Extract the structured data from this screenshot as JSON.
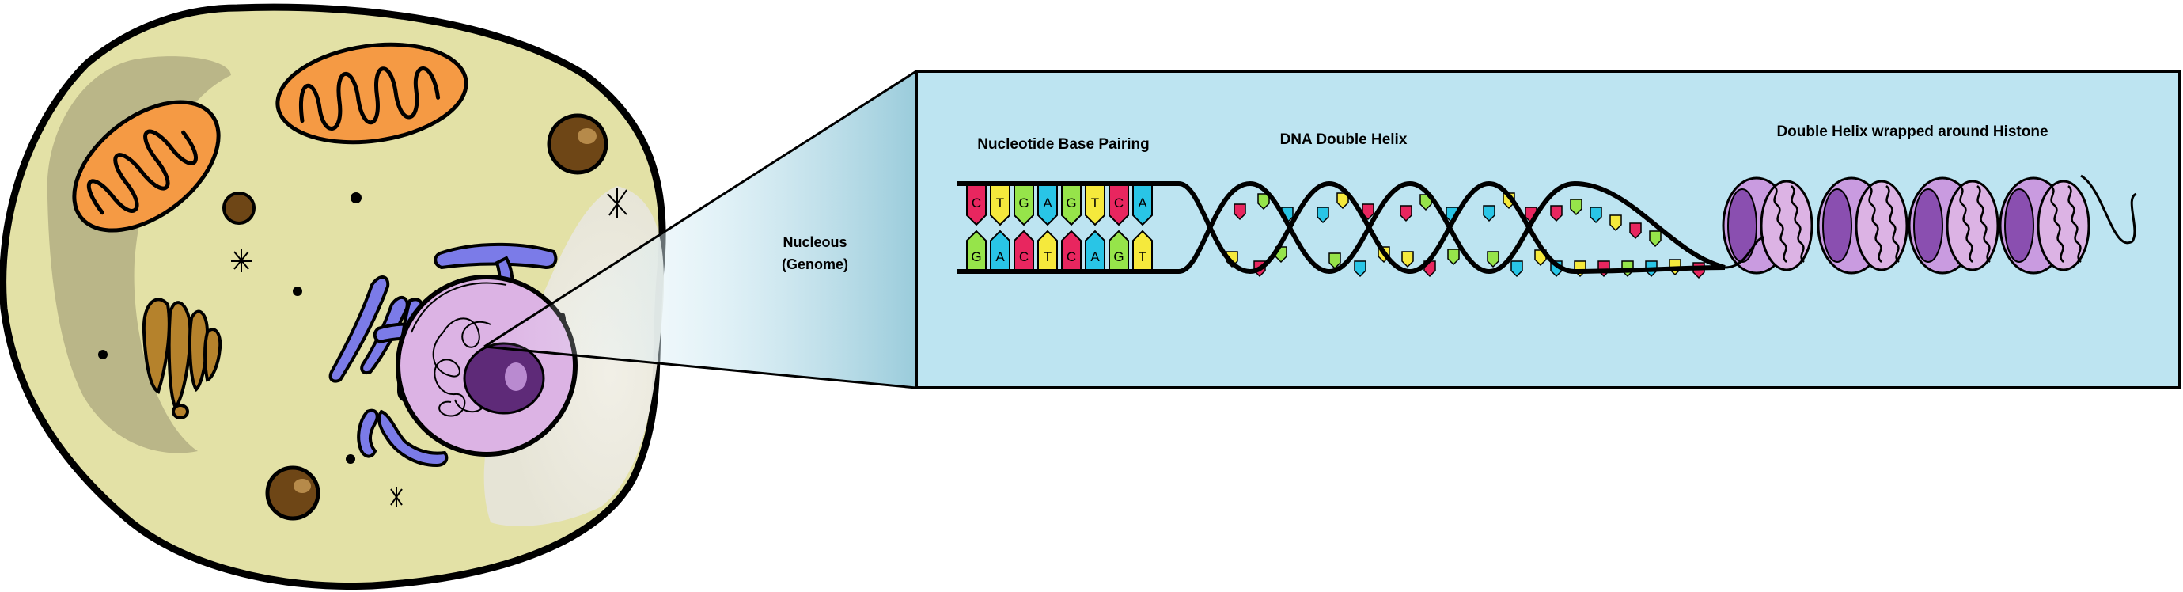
{
  "labels": {
    "nucleotide_base_pairing": "Nucleotide Base Pairing",
    "dna_double_helix": "DNA Double Helix",
    "helix_histone": "Double Helix wrapped around Histone",
    "nucleous_line1": "Nucleous",
    "nucleous_line2": "(Genome)"
  },
  "base_pairs": {
    "top": [
      "C",
      "T",
      "G",
      "A",
      "G",
      "T",
      "C",
      "A"
    ],
    "bottom": [
      "G",
      "A",
      "C",
      "T",
      "C",
      "A",
      "G",
      "T"
    ]
  },
  "colors": {
    "cytoplasm": "#e3e1a6",
    "cell_outline": "#000000",
    "mitochondria": "#f59a44",
    "golgi": "#7b7be8",
    "nucleus": "#dcb3e4",
    "nucleolus": "#5e2a78",
    "panel": "#bde4f1",
    "base_A": "#29c5e6",
    "base_T": "#f5e93c",
    "base_G": "#96e44a",
    "base_C": "#e8265f",
    "histone": "#c99be0"
  }
}
